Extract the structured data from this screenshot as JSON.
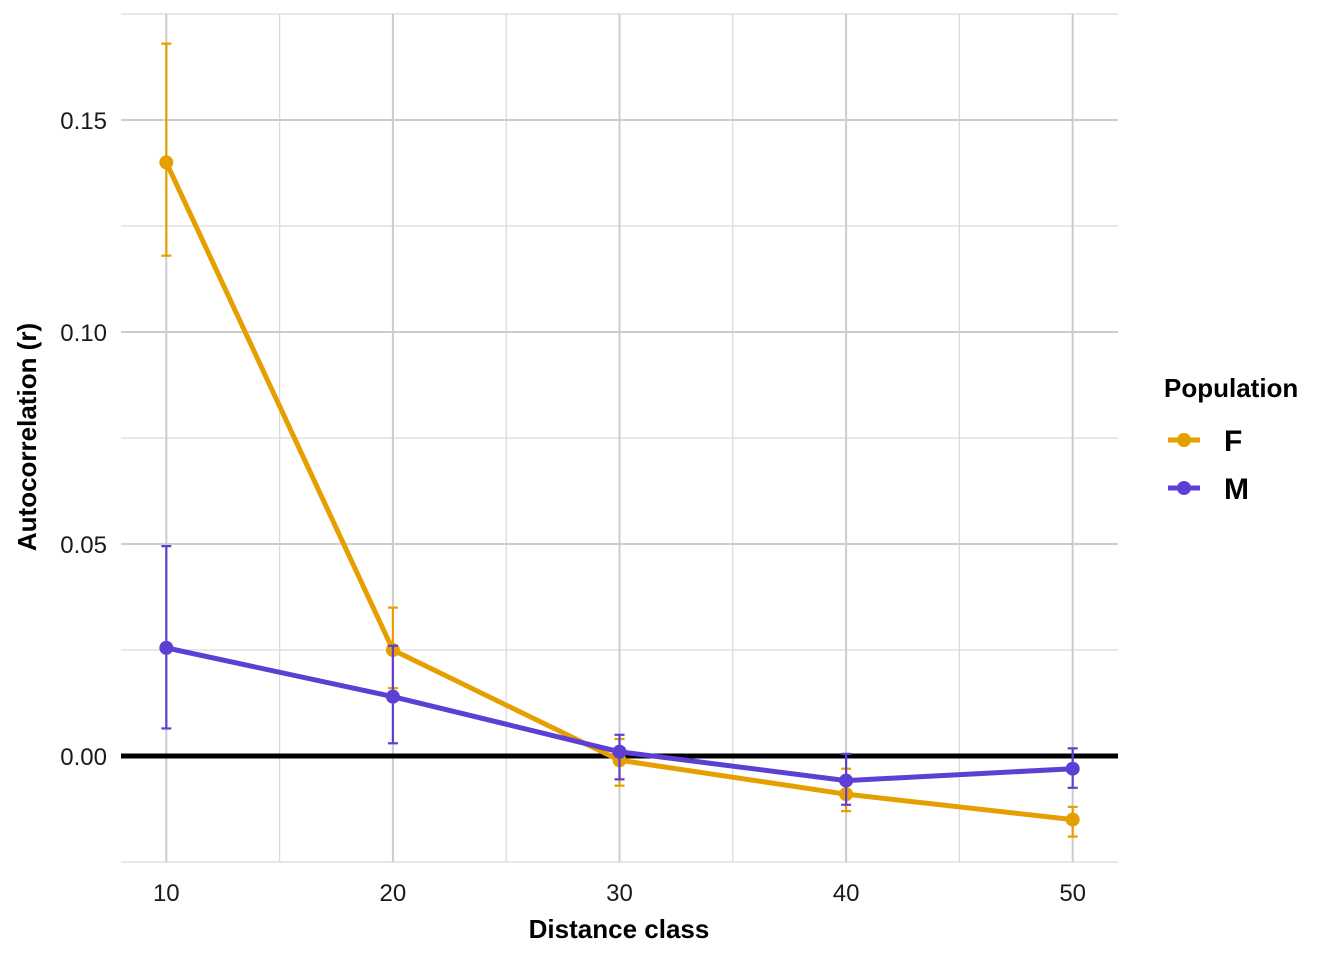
{
  "chart_data": {
    "type": "line",
    "xlabel": "Distance class",
    "ylabel": "Autocorrelation (r)",
    "x": [
      10,
      20,
      30,
      40,
      50
    ],
    "x_ticks": [
      "10",
      "20",
      "30",
      "40",
      "50"
    ],
    "y_ticks": [
      "0.00",
      "0.05",
      "0.10",
      "0.15"
    ],
    "xlim": [
      8,
      52
    ],
    "ylim": [
      -0.025,
      0.175
    ],
    "reference_line_y": 0,
    "grid": true,
    "legend": {
      "title": "Population",
      "placement": "right"
    },
    "series": [
      {
        "name": "F",
        "color": "#E69F00",
        "values": [
          0.14,
          0.025,
          -0.001,
          -0.009,
          -0.015
        ],
        "error_low": [
          0.118,
          0.016,
          -0.007,
          -0.013,
          -0.019
        ],
        "error_high": [
          0.168,
          0.035,
          0.004,
          -0.003,
          -0.012
        ]
      },
      {
        "name": "M",
        "color": "#5E3FD3",
        "values": [
          0.0255,
          0.014,
          0.001,
          -0.0058,
          -0.003
        ],
        "error_low": [
          0.0065,
          0.003,
          -0.0055,
          -0.0115,
          -0.0075
        ],
        "error_high": [
          0.0495,
          0.026,
          0.005,
          0.0005,
          0.0018
        ]
      }
    ]
  }
}
